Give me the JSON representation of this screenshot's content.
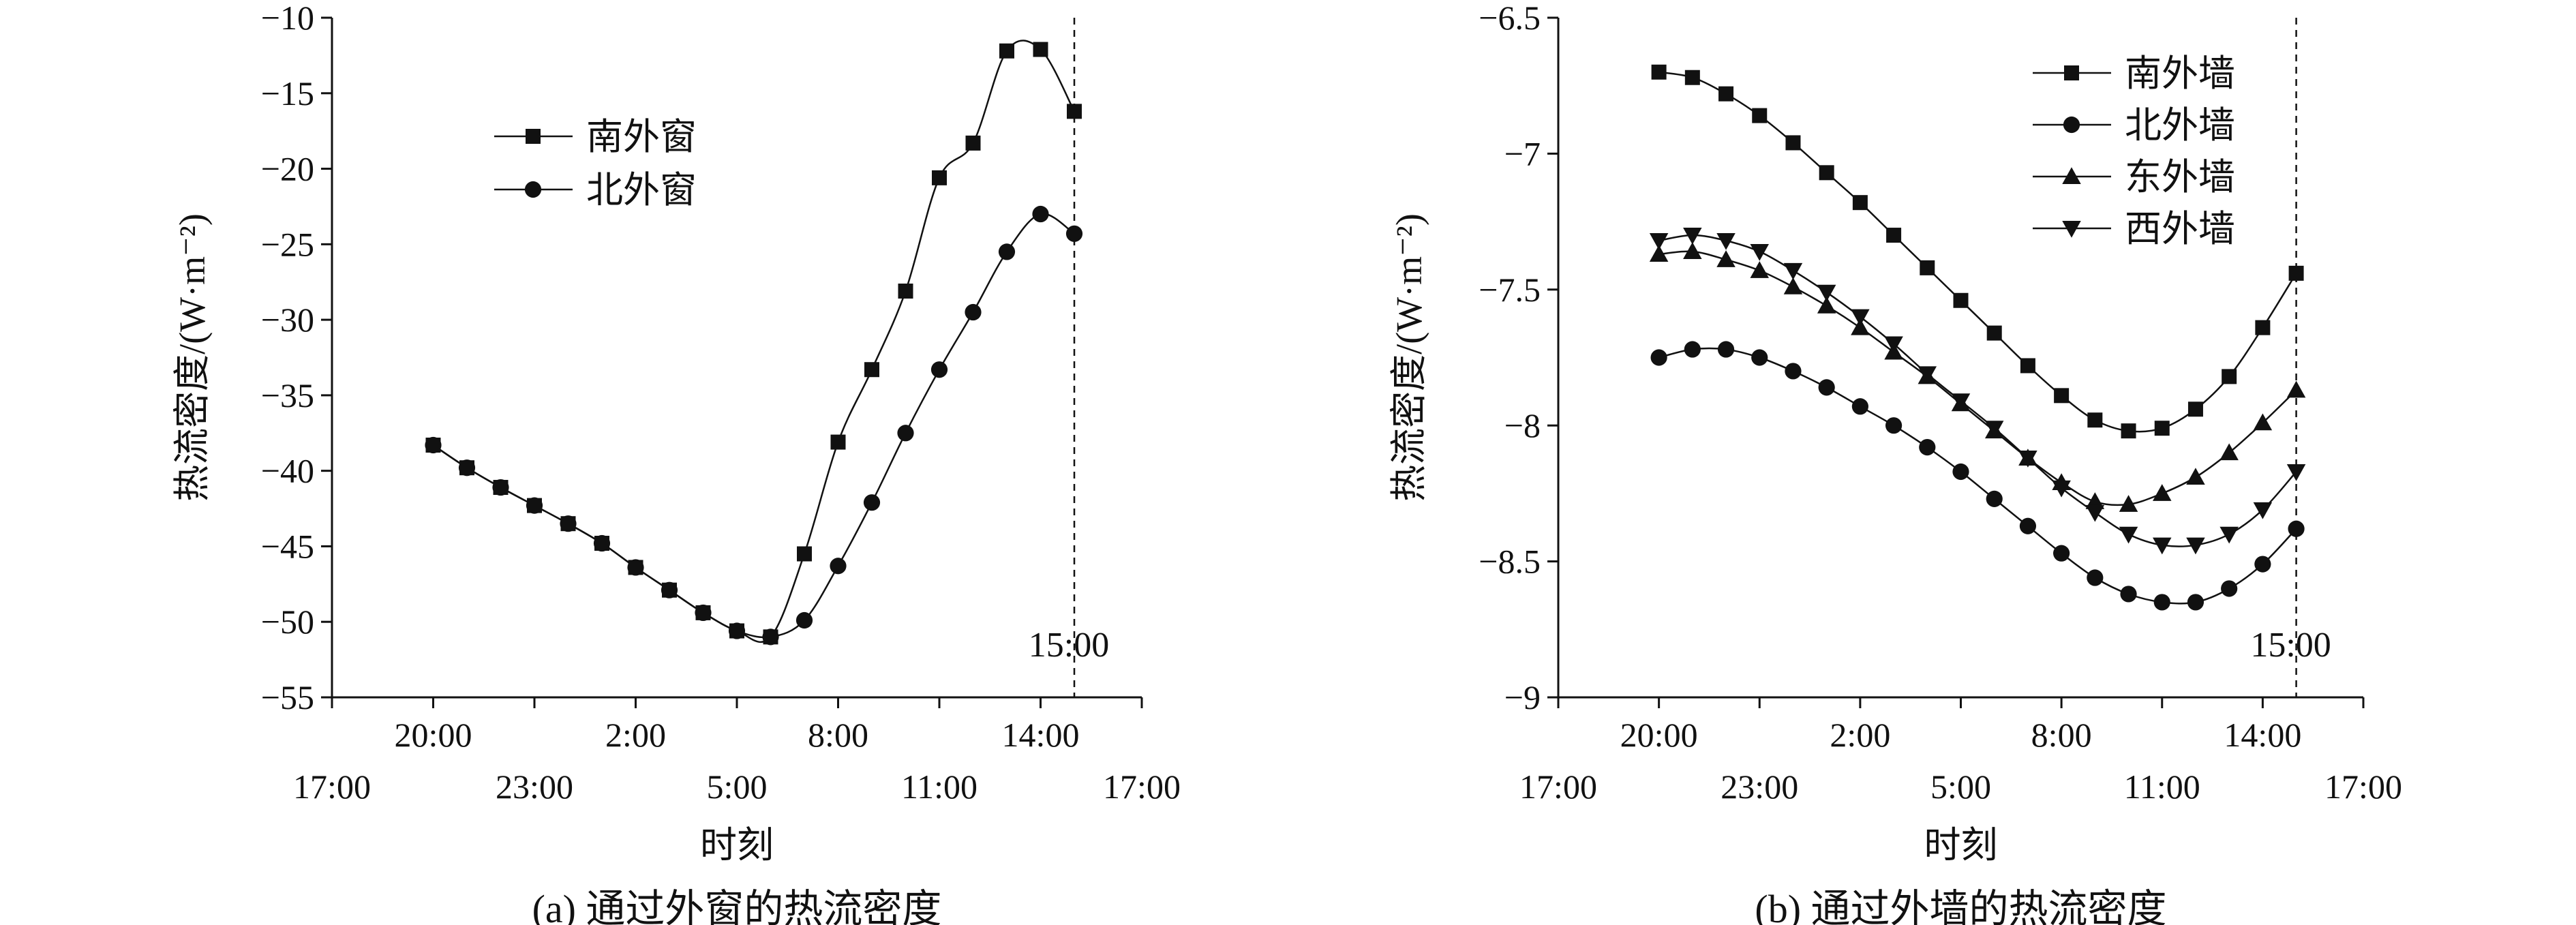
{
  "chart_data": [
    {
      "type": "line",
      "caption": "(a) 通过外窗的热流密度",
      "xlabel": "时刻",
      "ylabel": "热流密度/(W·m⁻²)",
      "ylim": [
        -55,
        -10
      ],
      "yticks": [
        -10,
        -15,
        -20,
        -25,
        -30,
        -35,
        -40,
        -45,
        -50,
        -55
      ],
      "xticks_upper": [
        "20:00",
        "2:00",
        "8:00",
        "14:00"
      ],
      "xticks_lower": [
        "17:00",
        "23:00",
        "5:00",
        "11:00",
        "17:00"
      ],
      "annotation": "15:00",
      "legend_position": "upper-left",
      "series": [
        {
          "name": "南外窗",
          "marker": "square",
          "x": [
            "20:00",
            "21:00",
            "22:00",
            "23:00",
            "0:00",
            "1:00",
            "2:00",
            "3:00",
            "4:00",
            "5:00",
            "6:00",
            "7:00",
            "8:00",
            "9:00",
            "10:00",
            "11:00",
            "12:00",
            "13:00",
            "14:00",
            "15:00"
          ],
          "values": [
            -38.3,
            -39.8,
            -41.1,
            -42.3,
            -43.5,
            -44.8,
            -46.4,
            -47.9,
            -49.4,
            -50.6,
            -51.0,
            -45.5,
            -38.1,
            -33.3,
            -28.1,
            -20.6,
            -18.3,
            -12.2,
            -12.1,
            -16.2
          ]
        },
        {
          "name": "北外窗",
          "marker": "circle",
          "x": [
            "20:00",
            "21:00",
            "22:00",
            "23:00",
            "0:00",
            "1:00",
            "2:00",
            "3:00",
            "4:00",
            "5:00",
            "6:00",
            "7:00",
            "8:00",
            "9:00",
            "10:00",
            "11:00",
            "12:00",
            "13:00",
            "14:00",
            "15:00"
          ],
          "values": [
            -38.3,
            -39.8,
            -41.1,
            -42.3,
            -43.5,
            -44.8,
            -46.4,
            -47.9,
            -49.4,
            -50.6,
            -51.0,
            -49.9,
            -46.3,
            -42.1,
            -37.5,
            -33.3,
            -29.5,
            -25.5,
            -23.0,
            -24.3
          ]
        }
      ]
    },
    {
      "type": "line",
      "caption": "(b) 通过外墙的热流密度",
      "xlabel": "时刻",
      "ylabel": "热流密度/(W·m⁻²)",
      "ylim": [
        -9.0,
        -6.5
      ],
      "yticks": [
        -6.5,
        -7.0,
        -7.5,
        -8.0,
        -8.5,
        -9.0
      ],
      "xticks_upper": [
        "20:00",
        "2:00",
        "8:00",
        "14:00"
      ],
      "xticks_lower": [
        "17:00",
        "23:00",
        "5:00",
        "11:00",
        "17:00"
      ],
      "annotation": "15:00",
      "legend_position": "upper-right",
      "series": [
        {
          "name": "南外墙",
          "marker": "square",
          "x": [
            "20:00",
            "21:00",
            "22:00",
            "23:00",
            "0:00",
            "1:00",
            "2:00",
            "3:00",
            "4:00",
            "5:00",
            "6:00",
            "7:00",
            "8:00",
            "9:00",
            "10:00",
            "11:00",
            "12:00",
            "13:00",
            "14:00",
            "15:00"
          ],
          "values": [
            -6.7,
            -6.72,
            -6.78,
            -6.86,
            -6.96,
            -7.07,
            -7.18,
            -7.3,
            -7.42,
            -7.54,
            -7.66,
            -7.78,
            -7.89,
            -7.98,
            -8.02,
            -8.01,
            -7.94,
            -7.82,
            -7.64,
            -7.44
          ]
        },
        {
          "name": "北外墙",
          "marker": "circle",
          "x": [
            "20:00",
            "21:00",
            "22:00",
            "23:00",
            "0:00",
            "1:00",
            "2:00",
            "3:00",
            "4:00",
            "5:00",
            "6:00",
            "7:00",
            "8:00",
            "9:00",
            "10:00",
            "11:00",
            "12:00",
            "13:00",
            "14:00",
            "15:00"
          ],
          "values": [
            -7.75,
            -7.72,
            -7.72,
            -7.75,
            -7.8,
            -7.86,
            -7.93,
            -8.0,
            -8.08,
            -8.17,
            -8.27,
            -8.37,
            -8.47,
            -8.56,
            -8.62,
            -8.65,
            -8.65,
            -8.6,
            -8.51,
            -8.38
          ]
        },
        {
          "name": "东外墙",
          "marker": "triangle-up",
          "x": [
            "20:00",
            "21:00",
            "22:00",
            "23:00",
            "0:00",
            "1:00",
            "2:00",
            "3:00",
            "4:00",
            "5:00",
            "6:00",
            "7:00",
            "8:00",
            "9:00",
            "10:00",
            "11:00",
            "12:00",
            "13:00",
            "14:00",
            "15:00"
          ],
          "values": [
            -7.37,
            -7.36,
            -7.39,
            -7.43,
            -7.49,
            -7.56,
            -7.64,
            -7.73,
            -7.82,
            -7.92,
            -8.02,
            -8.12,
            -8.21,
            -8.28,
            -8.29,
            -8.25,
            -8.19,
            -8.1,
            -7.99,
            -7.87
          ]
        },
        {
          "name": "西外墙",
          "marker": "triangle-down",
          "x": [
            "20:00",
            "21:00",
            "22:00",
            "23:00",
            "0:00",
            "1:00",
            "2:00",
            "3:00",
            "4:00",
            "5:00",
            "6:00",
            "7:00",
            "8:00",
            "9:00",
            "10:00",
            "11:00",
            "12:00",
            "13:00",
            "14:00",
            "15:00"
          ],
          "values": [
            -7.32,
            -7.3,
            -7.32,
            -7.36,
            -7.43,
            -7.51,
            -7.6,
            -7.7,
            -7.81,
            -7.91,
            -8.01,
            -8.12,
            -8.23,
            -8.32,
            -8.4,
            -8.44,
            -8.44,
            -8.4,
            -8.31,
            -8.17
          ]
        }
      ]
    }
  ]
}
